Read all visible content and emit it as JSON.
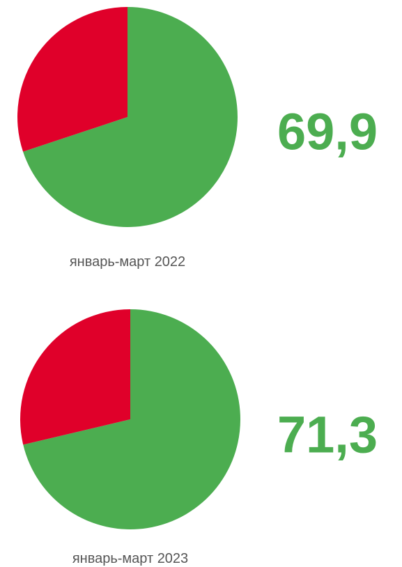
{
  "chart_data": [
    {
      "type": "pie",
      "title": "январь-март 2022",
      "values": [
        69.9,
        30.1
      ],
      "value_labels": [
        "69,9",
        null
      ],
      "colors": [
        "#4cad50",
        "#e0002a"
      ]
    },
    {
      "type": "pie",
      "title": "январь-март 2023",
      "values": [
        71.3,
        28.7
      ],
      "value_labels": [
        "71,3",
        null
      ],
      "colors": [
        "#4cad50",
        "#e0002a"
      ]
    }
  ]
}
